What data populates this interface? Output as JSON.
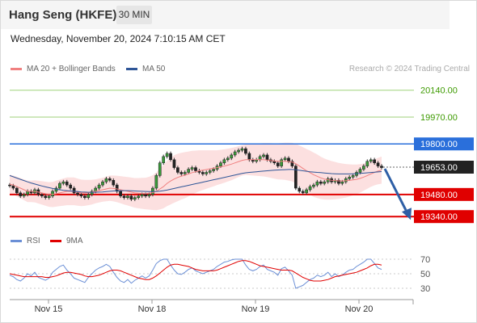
{
  "header": {
    "title": "Hang Seng (HKFE)",
    "interval": "30 MIN",
    "datetime": "Wednesday, November 20, 2024 7:10:15 AM CET"
  },
  "legend": {
    "ma20": {
      "label": "MA 20 + Bollinger Bands",
      "color": "#f08080"
    },
    "ma50": {
      "label": "MA 50",
      "color": "#2e5597"
    }
  },
  "copyright": "Research © 2024 Trading Central",
  "rsi_legend": {
    "rsi": {
      "label": "RSI",
      "color": "#6b8fd6"
    },
    "ma9": {
      "label": "9MA",
      "color": "#e00000"
    }
  },
  "chart_data": {
    "type": "candlestick",
    "x_tick_labels": [
      "Nov 15",
      "Nov 18",
      "Nov 19",
      "Nov 20"
    ],
    "y_axis_range": [
      19290,
      20200
    ],
    "levels": [
      {
        "value": 20140.0,
        "label": "20140.00",
        "style": "line",
        "color": "#9fd27a",
        "text_color": "#3d9a00"
      },
      {
        "value": 19970.0,
        "label": "19970.00",
        "style": "line",
        "color": "#9fd27a",
        "text_color": "#3d9a00"
      },
      {
        "value": 19800.0,
        "label": "19800.00",
        "style": "box",
        "color": "#2a6fdb"
      },
      {
        "value": 19653.0,
        "label": "19653.00",
        "style": "box",
        "color": "#222222"
      },
      {
        "value": 19480.0,
        "label": "19480.00",
        "style": "box",
        "color": "#e00000"
      },
      {
        "value": 19340.0,
        "label": "19340.00",
        "style": "box",
        "color": "#e00000"
      }
    ],
    "last_price": 19653.0,
    "forecast_target": 19340.0,
    "price_close": [
      19535,
      19520,
      19490,
      19470,
      19480,
      19500,
      19490,
      19510,
      19480,
      19470,
      19460,
      19470,
      19500,
      19520,
      19550,
      19560,
      19540,
      19520,
      19490,
      19480,
      19470,
      19460,
      19480,
      19500,
      19520,
      19540,
      19560,
      19580,
      19570,
      19540,
      19500,
      19470,
      19460,
      19470,
      19450,
      19460,
      19470,
      19480,
      19470,
      19480,
      19520,
      19600,
      19680,
      19720,
      19740,
      19700,
      19650,
      19620,
      19610,
      19620,
      19640,
      19650,
      19630,
      19620,
      19610,
      19620,
      19630,
      19640,
      19660,
      19680,
      19700,
      19710,
      19730,
      19750,
      19760,
      19770,
      19740,
      19700,
      19690,
      19700,
      19720,
      19730,
      19700,
      19690,
      19680,
      19660,
      19700,
      19710,
      19690,
      19660,
      19520,
      19500,
      19490,
      19510,
      19530,
      19540,
      19560,
      19550,
      19560,
      19580,
      19560,
      19570,
      19550,
      19560,
      19580,
      19590,
      19600,
      19620,
      19640,
      19660,
      19690,
      19700,
      19680,
      19660,
      19650
    ],
    "ma20": [
      19545,
      19540,
      19530,
      19520,
      19510,
      19500,
      19500,
      19500,
      19495,
      19490,
      19485,
      19480,
      19480,
      19485,
      19490,
      19495,
      19500,
      19500,
      19500,
      19495,
      19490,
      19490,
      19492,
      19495,
      19500,
      19505,
      19510,
      19515,
      19520,
      19518,
      19515,
      19510,
      19505,
      19500,
      19495,
      19490,
      19488,
      19487,
      19486,
      19488,
      19492,
      19500,
      19515,
      19530,
      19550,
      19565,
      19578,
      19588,
      19596,
      19602,
      19610,
      19618,
      19624,
      19630,
      19634,
      19638,
      19642,
      19646,
      19650,
      19655,
      19660,
      19666,
      19672,
      19680,
      19688,
      19696,
      19700,
      19700,
      19700,
      19700,
      19700,
      19700,
      19698,
      19695,
      19692,
      19690,
      19690,
      19690,
      19688,
      19685,
      19675,
      19660,
      19645,
      19630,
      19618,
      19605,
      19595,
      19585,
      19578,
      19573,
      19570,
      19568,
      19566,
      19566,
      19567,
      19569,
      19572,
      19576,
      19582,
      19590,
      19600,
      19610,
      19620,
      19628,
      19634
    ],
    "ma50": [
      19600,
      19592,
      19584,
      19576,
      19568,
      19560,
      19553,
      19546,
      19540,
      19534,
      19528,
      19523,
      19518,
      19514,
      19510,
      19507,
      19504,
      19502,
      19500,
      19498,
      19496,
      19495,
      19494,
      19494,
      19494,
      19495,
      19496,
      19498,
      19500,
      19502,
      19503,
      19504,
      19504,
      19504,
      19503,
      19502,
      19501,
      19500,
      19499,
      19498,
      19498,
      19499,
      19501,
      19504,
      19508,
      19513,
      19518,
      19523,
      19528,
      19533,
      19538,
      19543,
      19548,
      19553,
      19558,
      19563,
      19568,
      19573,
      19578,
      19583,
      19588,
      19593,
      19598,
      19603,
      19608,
      19613,
      19617,
      19620,
      19622,
      19624,
      19626,
      19628,
      19630,
      19632,
      19634,
      19635,
      19636,
      19637,
      19638,
      19638,
      19636,
      19633,
      19630,
      19627,
      19624,
      19622,
      19620,
      19618,
      19616,
      19614,
      19612,
      19611,
      19610,
      19610,
      19610,
      19610,
      19611,
      19612,
      19613,
      19615,
      19617,
      19619,
      19621,
      19623,
      19625
    ],
    "bb_width": [
      60,
      60,
      62,
      64,
      66,
      68,
      68,
      70,
      72,
      74,
      76,
      78,
      80,
      82,
      84,
      86,
      88,
      88,
      88,
      86,
      84,
      82,
      80,
      78,
      76,
      76,
      76,
      78,
      80,
      82,
      84,
      86,
      88,
      90,
      92,
      94,
      96,
      98,
      100,
      104,
      110,
      120,
      130,
      138,
      144,
      148,
      150,
      150,
      148,
      146,
      142,
      138,
      134,
      130,
      126,
      122,
      118,
      114,
      110,
      108,
      106,
      104,
      102,
      100,
      98,
      96,
      96,
      98,
      100,
      102,
      104,
      106,
      108,
      110,
      112,
      114,
      116,
      118,
      120,
      122,
      126,
      130,
      134,
      138,
      140,
      140,
      138,
      134,
      130,
      126,
      122,
      118,
      114,
      110,
      106,
      102,
      98,
      94,
      90,
      86,
      84,
      82,
      82,
      84,
      86
    ],
    "rsi_axis": {
      "ticks": [
        70,
        50,
        30
      ],
      "range": [
        20,
        80
      ]
    },
    "rsi": [
      48,
      46,
      42,
      40,
      44,
      50,
      47,
      52,
      45,
      43,
      41,
      44,
      52,
      56,
      60,
      62,
      55,
      50,
      44,
      42,
      40,
      38,
      45,
      50,
      55,
      58,
      60,
      63,
      60,
      52,
      45,
      40,
      38,
      42,
      37,
      41,
      44,
      47,
      44,
      47,
      55,
      64,
      68,
      70,
      70,
      62,
      55,
      50,
      49,
      52,
      56,
      58,
      54,
      52,
      50,
      52,
      54,
      56,
      60,
      63,
      66,
      67,
      69,
      70,
      70,
      70,
      62,
      56,
      54,
      56,
      60,
      62,
      56,
      54,
      52,
      48,
      57,
      59,
      54,
      48,
      30,
      32,
      34,
      38,
      42,
      44,
      48,
      46,
      48,
      52,
      46,
      50,
      46,
      48,
      52,
      55,
      56,
      60,
      63,
      66,
      70,
      70,
      64,
      58,
      56
    ],
    "rsi_ma9": [
      50,
      49,
      48,
      47,
      46,
      46,
      46,
      46,
      46,
      46,
      45,
      45,
      46,
      47,
      49,
      51,
      52,
      52,
      51,
      50,
      49,
      47,
      46,
      46,
      47,
      48,
      50,
      52,
      54,
      55,
      55,
      54,
      52,
      50,
      48,
      46,
      44,
      43,
      42,
      42,
      44,
      47,
      51,
      55,
      59,
      62,
      63,
      63,
      62,
      61,
      60,
      58,
      56,
      55,
      54,
      54,
      54,
      54,
      55,
      57,
      59,
      61,
      63,
      65,
      67,
      68,
      68,
      67,
      65,
      63,
      61,
      60,
      59,
      58,
      57,
      56,
      55,
      55,
      55,
      54,
      51,
      48,
      45,
      43,
      41,
      40,
      40,
      40,
      41,
      42,
      44,
      46,
      47,
      48,
      49,
      50,
      51,
      52,
      54,
      56,
      58,
      61,
      63,
      63,
      62
    ]
  }
}
